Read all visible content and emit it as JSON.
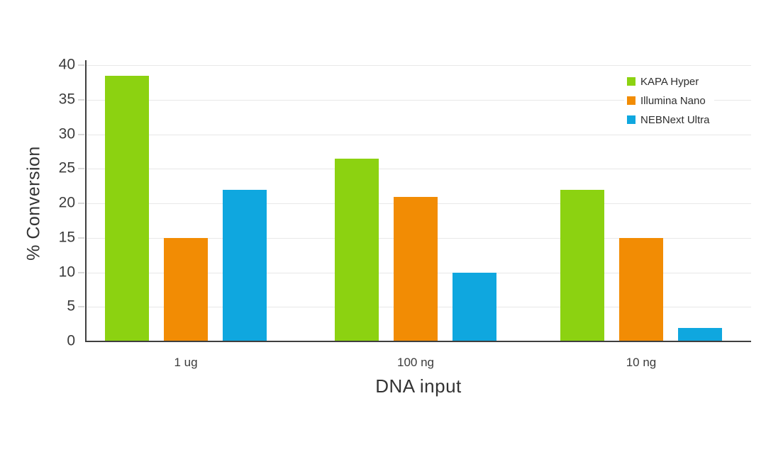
{
  "chart_data": {
    "type": "bar",
    "title": "",
    "xlabel": "DNA input",
    "ylabel": "% Conversion",
    "categories": [
      "1 ug",
      "100 ng",
      "10 ng"
    ],
    "series": [
      {
        "name": "KAPA Hyper",
        "color": "#8CD211",
        "values": [
          38.5,
          26.5,
          22
        ]
      },
      {
        "name": "Illumina Nano",
        "color": "#F28C04",
        "values": [
          15,
          20.9,
          15
        ]
      },
      {
        "name": "NEBNext Ultra",
        "color": "#0FA7DF",
        "values": [
          22,
          10,
          2
        ]
      }
    ],
    "ylim": [
      0,
      40
    ],
    "y_ticks": [
      0,
      5,
      10,
      15,
      20,
      25,
      30,
      35,
      40
    ],
    "grid": true,
    "legend_position": "top-right",
    "axis_color": "#3f3f3f",
    "gridline_color": "#e8e8e8",
    "background_color": "#ffffff"
  }
}
